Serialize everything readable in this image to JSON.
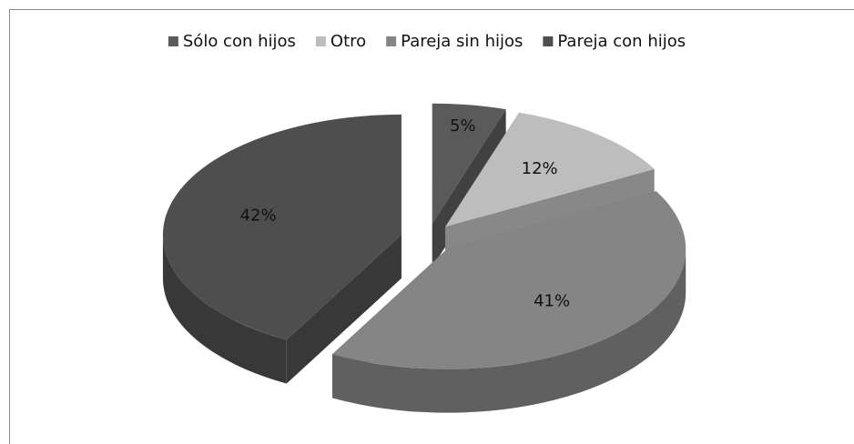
{
  "chart_data": {
    "type": "pie3d",
    "categories": [
      "Sólo con hijos",
      "Otro",
      "Pareja sin hijos",
      "Pareja con hijos"
    ],
    "values": [
      5,
      12,
      41,
      42
    ],
    "value_labels": [
      "5%",
      "12%",
      "41%",
      "42%"
    ],
    "colors": [
      "#5a5a5a",
      "#bdbdbd",
      "#858585",
      "#4e4e4e"
    ],
    "legend": "top"
  }
}
